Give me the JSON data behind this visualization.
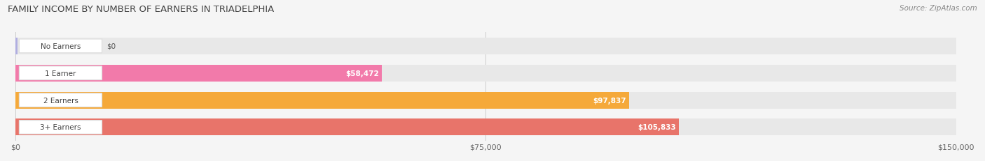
{
  "title": "FAMILY INCOME BY NUMBER OF EARNERS IN TRIADELPHIA",
  "source": "Source: ZipAtlas.com",
  "categories": [
    "No Earners",
    "1 Earner",
    "2 Earners",
    "3+ Earners"
  ],
  "values": [
    0,
    58472,
    97837,
    105833
  ],
  "bar_colors": [
    "#b0aee0",
    "#f27aaa",
    "#f5a93a",
    "#e8746a"
  ],
  "bar_bg_color": "#e8e8e8",
  "label_bg_colors": [
    "#b0aee0",
    "#f27aaa",
    "#f5a93a",
    "#e8746a"
  ],
  "xlim": [
    0,
    150000
  ],
  "xticks": [
    0,
    75000,
    150000
  ],
  "xtick_labels": [
    "$0",
    "$75,000",
    "$150,000"
  ],
  "value_labels": [
    "$0",
    "$58,472",
    "$97,837",
    "$105,833"
  ],
  "background_color": "#f5f5f5",
  "bar_height": 0.62,
  "bar_gap": 0.08,
  "title_fontsize": 9.5,
  "source_fontsize": 7.5,
  "tick_fontsize": 8
}
